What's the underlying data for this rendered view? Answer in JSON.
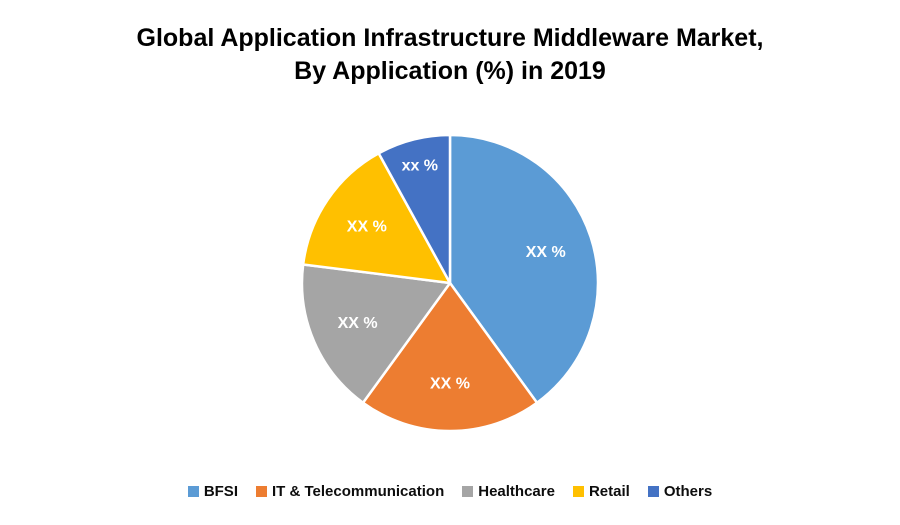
{
  "chart_data": {
    "type": "pie",
    "title": "Global Application Infrastructure Middleware Market, By Application (%) in 2019",
    "title_lines": [
      "Global Application Infrastructure Middleware Market,",
      "By Application (%) in 2019"
    ],
    "categories": [
      "BFSI",
      "IT & Telecommunication",
      "Healthcare",
      "Retail",
      "Others"
    ],
    "values": [
      40,
      20,
      17,
      15,
      8
    ],
    "value_labels": [
      "XX %",
      "XX %",
      "XX %",
      "XX %",
      "xx %"
    ],
    "colors": [
      "#5B9BD5",
      "#ED7D31",
      "#A5A5A5",
      "#FFC000",
      "#4472C4"
    ],
    "label_color": "#FFFFFF",
    "start_angle_deg": 0,
    "direction": "clockwise",
    "legend_position": "bottom",
    "grid": false
  }
}
